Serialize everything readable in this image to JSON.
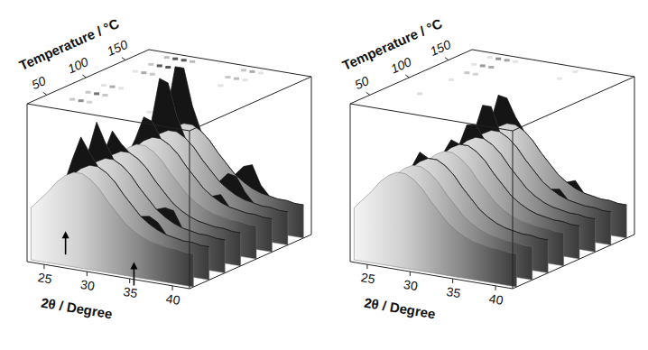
{
  "chart_data": [
    {
      "type": "surface",
      "x_label": "2θ / Degree",
      "y_label": "Temperature / °C",
      "x": [
        23,
        24,
        25,
        26,
        27,
        28,
        29,
        30,
        31,
        32,
        33,
        34,
        35,
        36,
        37,
        38,
        39,
        40,
        41,
        42
      ],
      "y": [
        30,
        50,
        70,
        90,
        110,
        130,
        150,
        170
      ],
      "z": [
        [
          0.33,
          0.39,
          0.45,
          0.52,
          0.57,
          0.6,
          0.6,
          0.57,
          0.52,
          0.45,
          0.39,
          0.33,
          0.29,
          0.26,
          0.24,
          0.23,
          0.22,
          0.22,
          0.21,
          0.21
        ],
        [
          0.33,
          0.39,
          0.45,
          0.62,
          0.77,
          0.68,
          0.6,
          0.57,
          0.52,
          0.45,
          0.39,
          0.33,
          0.34,
          0.31,
          0.24,
          0.23,
          0.22,
          0.22,
          0.21,
          0.21
        ],
        [
          0.33,
          0.39,
          0.45,
          0.62,
          0.82,
          0.7,
          0.6,
          0.57,
          0.52,
          0.45,
          0.39,
          0.33,
          0.35,
          0.34,
          0.24,
          0.23,
          0.22,
          0.22,
          0.21,
          0.21
        ],
        [
          0.33,
          0.39,
          0.45,
          0.57,
          0.72,
          0.65,
          0.6,
          0.57,
          0.52,
          0.45,
          0.39,
          0.33,
          0.29,
          0.26,
          0.24,
          0.23,
          0.22,
          0.22,
          0.21,
          0.21
        ],
        [
          0.33,
          0.39,
          0.45,
          0.52,
          0.57,
          0.6,
          0.6,
          0.57,
          0.52,
          0.45,
          0.39,
          0.33,
          0.29,
          0.26,
          0.24,
          0.23,
          0.22,
          0.22,
          0.21,
          0.21
        ],
        [
          0.33,
          0.39,
          0.45,
          0.57,
          0.72,
          0.7,
          0.6,
          0.57,
          0.52,
          0.45,
          0.39,
          0.33,
          0.29,
          0.31,
          0.24,
          0.23,
          0.22,
          0.22,
          0.21,
          0.21
        ],
        [
          0.33,
          0.39,
          0.45,
          0.62,
          0.92,
          0.9,
          0.7,
          0.57,
          0.52,
          0.45,
          0.39,
          0.33,
          0.39,
          0.38,
          0.29,
          0.23,
          0.22,
          0.22,
          0.21,
          0.21
        ],
        [
          0.33,
          0.39,
          0.45,
          0.64,
          0.95,
          0.95,
          0.72,
          0.57,
          0.52,
          0.45,
          0.39,
          0.33,
          0.39,
          0.41,
          0.29,
          0.23,
          0.22,
          0.22,
          0.21,
          0.21
        ]
      ],
      "xlim": [
        23,
        42
      ],
      "ylim": [
        25,
        180
      ],
      "zlim": [
        0,
        1
      ],
      "xticks": [
        25,
        30,
        35,
        40
      ],
      "yticks": [
        50,
        100,
        150
      ],
      "arrows": [
        27.5,
        35.5
      ]
    },
    {
      "type": "surface",
      "x_label": "2θ / Degree",
      "y_label": "Temperature / °C",
      "x": [
        23,
        24,
        25,
        26,
        27,
        28,
        29,
        30,
        31,
        32,
        33,
        34,
        35,
        36,
        37,
        38,
        39,
        40,
        41,
        42
      ],
      "y": [
        30,
        50,
        70,
        90,
        110,
        130,
        150,
        170
      ],
      "z": [
        [
          0.33,
          0.39,
          0.45,
          0.52,
          0.57,
          0.6,
          0.6,
          0.57,
          0.52,
          0.45,
          0.39,
          0.33,
          0.29,
          0.26,
          0.24,
          0.23,
          0.22,
          0.22,
          0.21,
          0.21
        ],
        [
          0.33,
          0.39,
          0.45,
          0.52,
          0.57,
          0.6,
          0.6,
          0.57,
          0.52,
          0.45,
          0.39,
          0.33,
          0.29,
          0.26,
          0.24,
          0.23,
          0.22,
          0.22,
          0.21,
          0.21
        ],
        [
          0.33,
          0.39,
          0.45,
          0.52,
          0.63,
          0.6,
          0.6,
          0.57,
          0.52,
          0.45,
          0.39,
          0.33,
          0.29,
          0.26,
          0.24,
          0.23,
          0.22,
          0.22,
          0.21,
          0.21
        ],
        [
          0.33,
          0.39,
          0.45,
          0.52,
          0.57,
          0.6,
          0.6,
          0.57,
          0.52,
          0.45,
          0.39,
          0.33,
          0.29,
          0.26,
          0.24,
          0.23,
          0.22,
          0.22,
          0.21,
          0.21
        ],
        [
          0.33,
          0.39,
          0.45,
          0.52,
          0.62,
          0.6,
          0.6,
          0.57,
          0.52,
          0.45,
          0.39,
          0.33,
          0.29,
          0.26,
          0.24,
          0.23,
          0.22,
          0.22,
          0.21,
          0.21
        ],
        [
          0.33,
          0.39,
          0.45,
          0.52,
          0.67,
          0.68,
          0.6,
          0.57,
          0.52,
          0.45,
          0.39,
          0.33,
          0.29,
          0.26,
          0.24,
          0.23,
          0.22,
          0.22,
          0.21,
          0.21
        ],
        [
          0.33,
          0.39,
          0.45,
          0.57,
          0.75,
          0.75,
          0.6,
          0.57,
          0.52,
          0.45,
          0.39,
          0.33,
          0.29,
          0.3,
          0.24,
          0.23,
          0.22,
          0.22,
          0.21,
          0.21
        ],
        [
          0.33,
          0.39,
          0.45,
          0.57,
          0.77,
          0.76,
          0.65,
          0.57,
          0.52,
          0.45,
          0.39,
          0.33,
          0.29,
          0.31,
          0.24,
          0.23,
          0.22,
          0.22,
          0.21,
          0.21
        ]
      ],
      "xlim": [
        23,
        42
      ],
      "ylim": [
        25,
        180
      ],
      "zlim": [
        0,
        1
      ],
      "xticks": [
        25,
        30,
        35,
        40
      ],
      "yticks": [
        50,
        100,
        150
      ]
    }
  ]
}
